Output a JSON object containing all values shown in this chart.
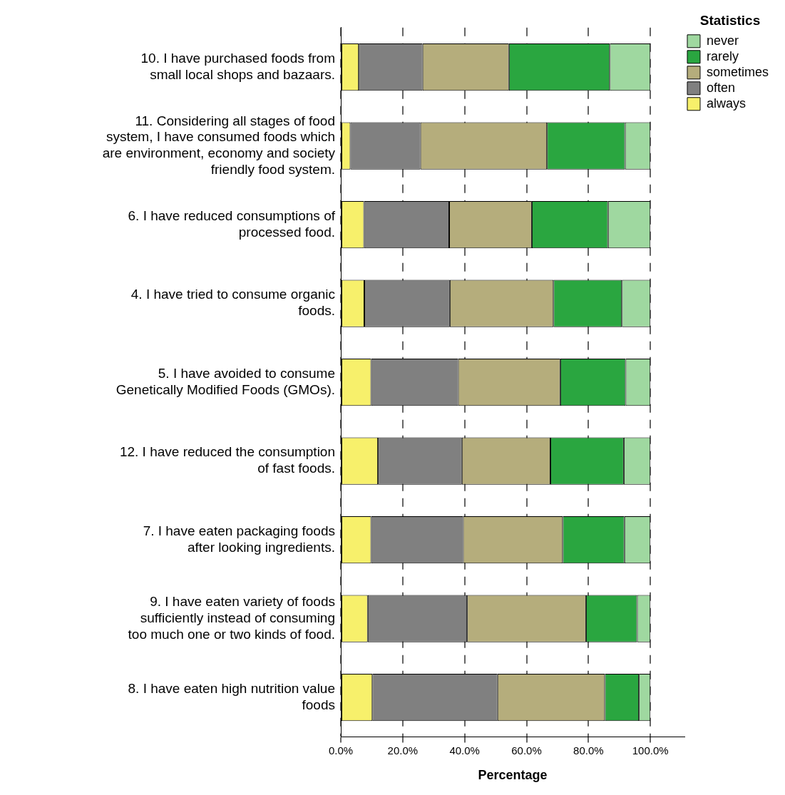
{
  "chart_data": {
    "type": "bar",
    "orientation": "horizontal",
    "stacked": true,
    "xlabel": "Percentage",
    "legend_title": "Statistics",
    "legend": "top right",
    "grid": "x",
    "categories": [
      "10. I have purchased foods from small local shops and bazaars.",
      "11. Considering all stages of food system, I have consumed foods which are environment, economy and society friendly food system.",
      "6. I have reduced consumptions of processed food.",
      "4. I have tried to consume organic foods.",
      "5. I have avoided to consume Genetically Modified Foods (GMOs).",
      "12. I have reduced the consumption of fast foods.",
      "7. I have eaten packaging foods after looking ingredients.",
      "9. I have eaten variety of foods sufficiently instead of consuming too much one or two kinds of food.",
      "8. I have eaten high nutrition value foods"
    ],
    "xlim": [
      0,
      111
    ],
    "xticks": [
      {
        "value": 0,
        "label": "0.0%"
      },
      {
        "value": 20,
        "label": "20.0%"
      },
      {
        "value": 40,
        "label": "40.0%"
      },
      {
        "value": 60,
        "label": "60.0%"
      },
      {
        "value": 80,
        "label": "80.0%"
      },
      {
        "value": 100,
        "label": "100.0%"
      }
    ],
    "series": [
      {
        "name": "always",
        "color": "#f7f06b",
        "values": [
          5.8,
          3.1,
          7.5,
          7.6,
          9.8,
          12.0,
          9.8,
          8.7,
          10.2
        ]
      },
      {
        "name": "often",
        "color": "#808080",
        "values": [
          20.6,
          22.6,
          27.5,
          27.6,
          28.1,
          27.1,
          29.7,
          32.1,
          40.4
        ]
      },
      {
        "name": "sometimes",
        "color": "#b5ad7c",
        "values": [
          27.9,
          40.9,
          26.7,
          33.5,
          33.0,
          28.6,
          32.2,
          38.4,
          34.7
        ]
      },
      {
        "name": "rarely",
        "color": "#2aa640",
        "values": [
          32.6,
          25.2,
          24.6,
          22.1,
          21.1,
          23.7,
          19.9,
          16.5,
          11.0
        ]
      },
      {
        "name": "never",
        "color": "#9fd8a0",
        "values": [
          13.1,
          8.2,
          13.7,
          9.2,
          8.0,
          8.6,
          8.4,
          4.3,
          3.7
        ]
      }
    ]
  }
}
